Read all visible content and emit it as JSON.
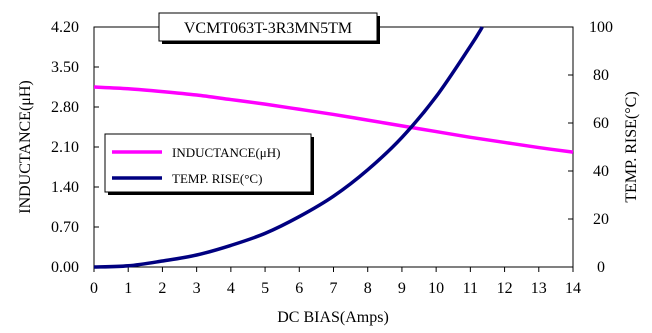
{
  "chart_data": {
    "type": "line",
    "title": "VCMT063T-3R3MN5TM",
    "xlabel": "DC BIAS(Amps)",
    "ylabel_left": "INDUCTANCE(μH)",
    "ylabel_right": "TEMP. RISE(°C)",
    "x_ticks": [
      "0",
      "1",
      "2",
      "3",
      "4",
      "5",
      "6",
      "7",
      "8",
      "9",
      "10",
      "11",
      "12",
      "13",
      "14"
    ],
    "y_left_ticks": [
      "0.00",
      "0.70",
      "1.40",
      "2.10",
      "2.80",
      "3.50",
      "4.20"
    ],
    "y_right_ticks": [
      "0",
      "20",
      "40",
      "60",
      "80",
      "100"
    ],
    "xlim": [
      0,
      14
    ],
    "ylim_left": [
      0,
      4.2
    ],
    "ylim_right": [
      0,
      100
    ],
    "grid": false,
    "legend_position": "middle-left",
    "series": [
      {
        "name": "INDUCTANCE(μH)",
        "axis": "left",
        "color": "#ff00ff",
        "x": [
          0,
          1,
          2,
          3,
          4,
          5,
          6,
          7,
          8,
          9,
          10,
          11,
          12,
          13,
          14
        ],
        "values": [
          3.15,
          3.12,
          3.07,
          3.01,
          2.93,
          2.85,
          2.76,
          2.67,
          2.57,
          2.47,
          2.37,
          2.27,
          2.18,
          2.09,
          2.01
        ]
      },
      {
        "name": "TEMP. RISE(°C)",
        "axis": "right",
        "color": "#000080",
        "x": [
          0,
          1,
          2,
          3,
          4,
          5,
          6,
          7,
          8,
          9,
          10,
          11,
          11.35
        ],
        "values": [
          0,
          0.5,
          2.5,
          5,
          9,
          14,
          21,
          29.5,
          40.5,
          54,
          71,
          92,
          100
        ]
      }
    ]
  }
}
